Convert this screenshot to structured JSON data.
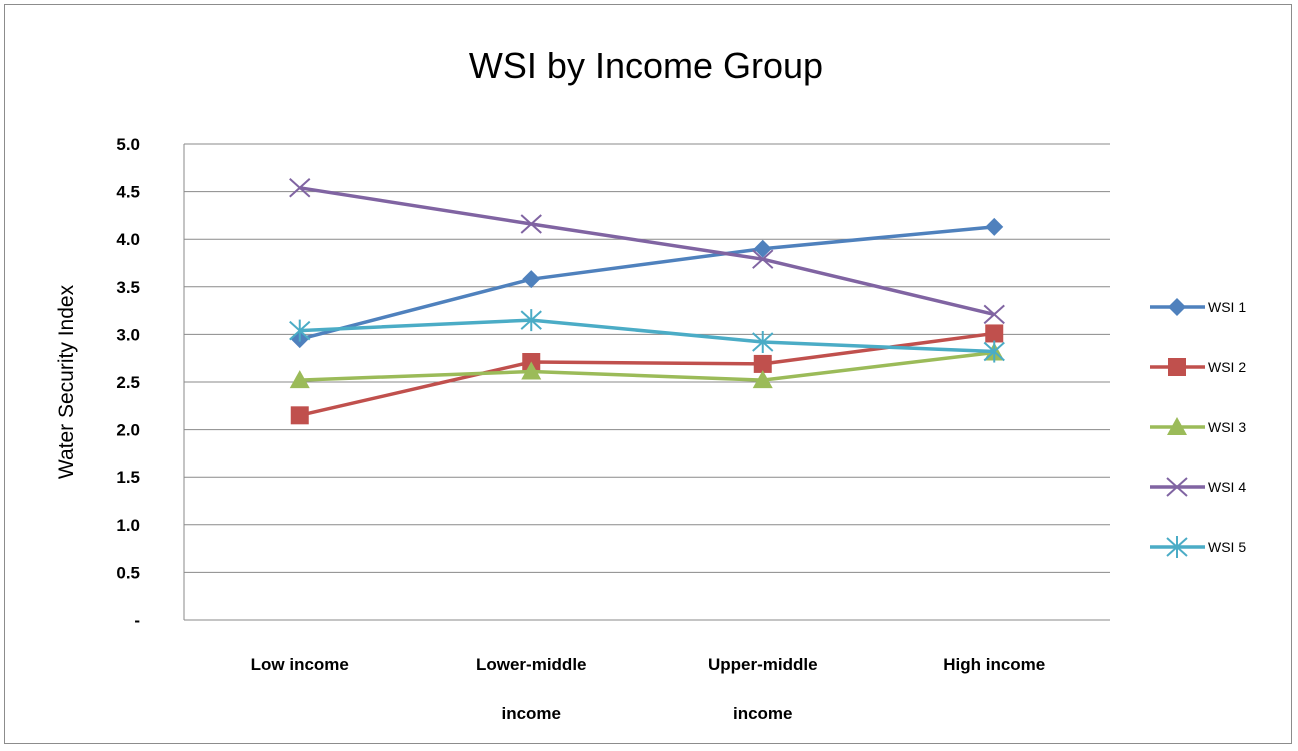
{
  "chart_data": {
    "type": "line",
    "title": "WSI by Income Group",
    "xlabel": "",
    "ylabel": "Water Security Index",
    "ylim": [
      0,
      5
    ],
    "yticks": [
      "-",
      "0.5",
      "1.0",
      "1.5",
      "2.0",
      "2.5",
      "3.0",
      "3.5",
      "4.0",
      "4.5",
      "5.0"
    ],
    "categories": [
      [
        "Low income"
      ],
      [
        "Lower-middle",
        "income"
      ],
      [
        "Upper-middle",
        "income"
      ],
      [
        "High income"
      ]
    ],
    "grid": true,
    "legend_position": "right",
    "series": [
      {
        "name": "WSI 1",
        "color": "#4F81BD",
        "marker": "diamond",
        "values": [
          2.95,
          3.58,
          3.9,
          4.13
        ]
      },
      {
        "name": "WSI 2",
        "color": "#C0504D",
        "marker": "square",
        "values": [
          2.15,
          2.71,
          2.69,
          3.01
        ]
      },
      {
        "name": "WSI 3",
        "color": "#9BBB59",
        "marker": "triangle",
        "values": [
          2.52,
          2.61,
          2.52,
          2.81
        ]
      },
      {
        "name": "WSI 4",
        "color": "#8064A2",
        "marker": "x",
        "values": [
          4.54,
          4.16,
          3.79,
          3.21
        ]
      },
      {
        "name": "WSI 5",
        "color": "#4BACC6",
        "marker": "star",
        "values": [
          3.04,
          3.15,
          2.92,
          2.82
        ]
      }
    ]
  }
}
